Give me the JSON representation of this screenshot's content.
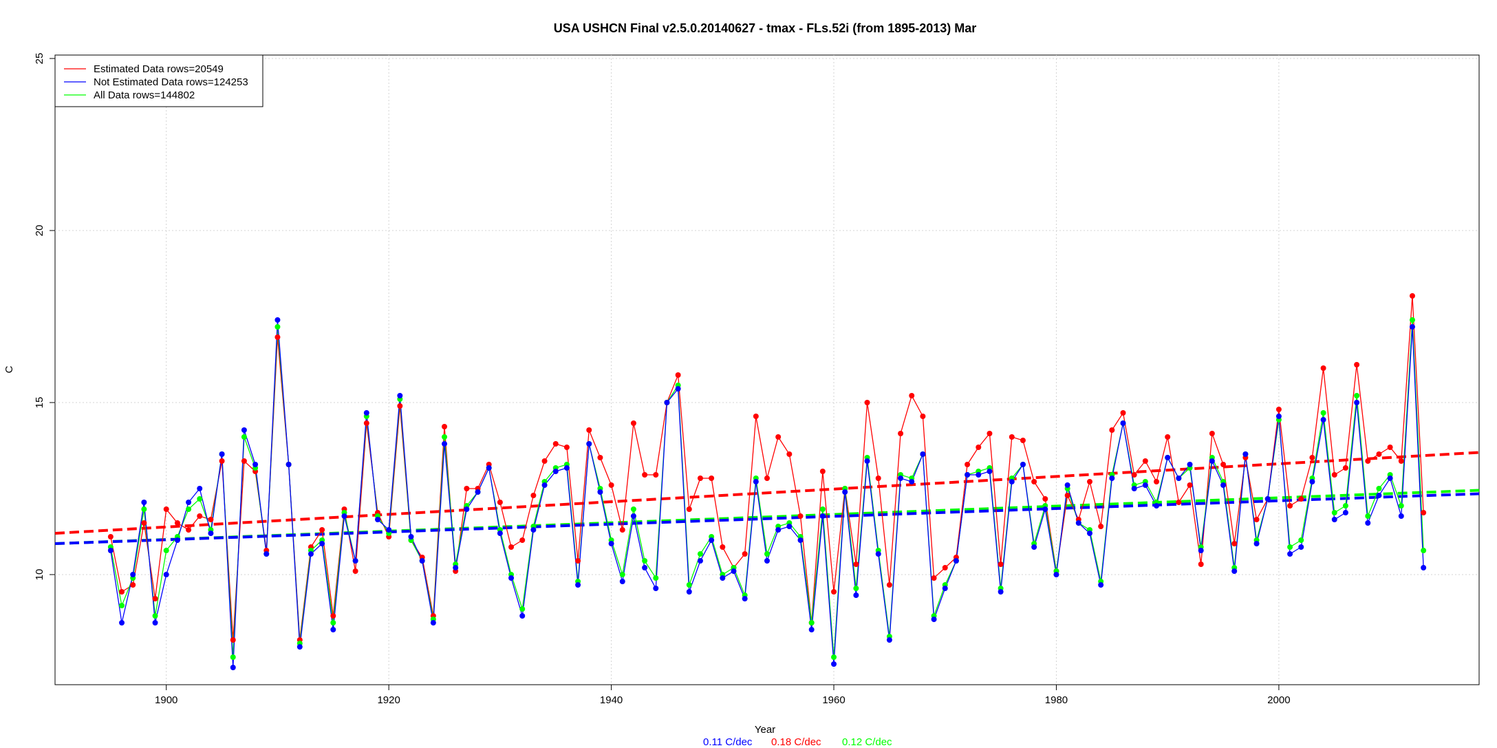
{
  "chart_data": {
    "type": "line",
    "title": "USA USHCN Final v2.5.0.20140627 - tmax - FLs.52i (from 1895-2013) Mar",
    "xlabel": "Year",
    "ylabel": "C",
    "xlim": [
      1890,
      2018
    ],
    "ylim": [
      6.8,
      25.1
    ],
    "xticks": [
      1900,
      1920,
      1940,
      1960,
      1980,
      2000
    ],
    "xtick_labels": [
      "1900",
      "1920",
      "1940",
      "1960",
      "1980",
      "2000"
    ],
    "yticks": [
      10,
      15,
      20,
      25
    ],
    "ytick_labels": [
      "10",
      "15",
      "20",
      "25"
    ],
    "grid": true,
    "legend_position": "top-left",
    "x": [
      1895,
      1896,
      1897,
      1898,
      1899,
      1900,
      1901,
      1902,
      1903,
      1904,
      1905,
      1906,
      1907,
      1908,
      1909,
      1910,
      1911,
      1912,
      1913,
      1914,
      1915,
      1916,
      1917,
      1918,
      1919,
      1920,
      1921,
      1922,
      1923,
      1924,
      1925,
      1926,
      1927,
      1928,
      1929,
      1930,
      1931,
      1932,
      1933,
      1934,
      1935,
      1936,
      1937,
      1938,
      1939,
      1940,
      1941,
      1942,
      1943,
      1944,
      1945,
      1946,
      1947,
      1948,
      1949,
      1950,
      1951,
      1952,
      1953,
      1954,
      1955,
      1956,
      1957,
      1958,
      1959,
      1960,
      1961,
      1962,
      1963,
      1964,
      1965,
      1966,
      1967,
      1968,
      1969,
      1970,
      1971,
      1972,
      1973,
      1974,
      1975,
      1976,
      1977,
      1978,
      1979,
      1980,
      1981,
      1982,
      1983,
      1984,
      1985,
      1986,
      1987,
      1988,
      1989,
      1990,
      1991,
      1992,
      1993,
      1994,
      1995,
      1996,
      1997,
      1998,
      1999,
      2000,
      2001,
      2002,
      2003,
      2004,
      2005,
      2006,
      2007,
      2008,
      2009,
      2010,
      2011,
      2012,
      2013
    ],
    "series": [
      {
        "name": "Estimated Data rows=20549",
        "color": "#ff0000",
        "values": [
          11.1,
          9.5,
          9.7,
          11.5,
          9.3,
          11.9,
          11.5,
          11.3,
          11.7,
          11.6,
          13.3,
          8.1,
          13.3,
          13.0,
          10.7,
          16.9,
          13.2,
          8.1,
          10.8,
          11.3,
          8.8,
          11.9,
          10.1,
          14.4,
          11.8,
          11.1,
          14.9,
          11.0,
          10.5,
          8.8,
          14.3,
          10.1,
          12.5,
          12.5,
          13.2,
          12.1,
          10.8,
          11.0,
          12.3,
          13.3,
          13.8,
          13.7,
          10.4,
          14.2,
          13.4,
          12.6,
          11.3,
          14.4,
          12.9,
          12.9,
          15.0,
          15.8,
          11.9,
          12.8,
          12.8,
          10.8,
          10.2,
          10.6,
          14.6,
          12.8,
          14.0,
          13.5,
          11.7,
          8.6,
          13.0,
          9.5,
          12.5,
          10.3,
          15.0,
          12.8,
          9.7,
          14.1,
          15.2,
          14.6,
          9.9,
          10.2,
          10.5,
          13.2,
          13.7,
          14.1,
          10.3,
          14.0,
          13.9,
          12.7,
          12.2,
          10.1,
          12.3,
          11.6,
          12.7,
          11.4,
          14.2,
          14.7,
          12.9,
          13.3,
          12.7,
          14.0,
          12.1,
          12.6,
          10.3,
          14.1,
          13.2,
          10.9,
          13.4,
          11.6,
          12.2,
          14.8,
          12.0,
          12.2,
          13.4,
          16.0,
          12.9,
          13.1,
          16.1,
          13.3,
          13.5,
          13.7,
          13.3,
          18.1,
          11.8
        ]
      },
      {
        "name": "Not Estimated Data rows=124253",
        "color": "#0000ff",
        "values": [
          10.7,
          8.6,
          10.0,
          12.1,
          8.6,
          10.0,
          11.0,
          12.1,
          12.5,
          11.2,
          13.5,
          7.3,
          14.2,
          13.2,
          10.6,
          17.4,
          13.2,
          7.9,
          10.6,
          10.9,
          8.4,
          11.7,
          10.4,
          14.7,
          11.6,
          11.3,
          15.2,
          11.1,
          10.4,
          8.6,
          13.8,
          10.2,
          11.9,
          12.4,
          13.1,
          11.2,
          9.9,
          8.8,
          11.3,
          12.6,
          13.0,
          13.1,
          9.7,
          13.8,
          12.4,
          10.9,
          9.8,
          11.7,
          10.2,
          9.6,
          15.0,
          15.4,
          9.5,
          10.4,
          11.0,
          9.9,
          10.1,
          9.3,
          12.7,
          10.4,
          11.3,
          11.4,
          11.0,
          8.4,
          11.7,
          7.4,
          12.4,
          9.4,
          13.3,
          10.6,
          8.1,
          12.8,
          12.7,
          13.5,
          8.7,
          9.6,
          10.4,
          12.9,
          12.9,
          13.0,
          9.5,
          12.7,
          13.2,
          10.8,
          11.9,
          10.0,
          12.6,
          11.5,
          11.2,
          9.7,
          12.8,
          14.4,
          12.5,
          12.6,
          12.0,
          13.4,
          12.8,
          13.2,
          10.7,
          13.3,
          12.6,
          10.1,
          13.5,
          10.9,
          12.2,
          14.6,
          10.6,
          10.8,
          12.7,
          14.5,
          11.6,
          11.8,
          15.0,
          11.5,
          12.3,
          12.8,
          11.7,
          17.2,
          10.2
        ]
      },
      {
        "name": "All Data rows=144802",
        "color": "#00ff00",
        "values": [
          10.8,
          9.1,
          9.9,
          11.9,
          8.8,
          10.7,
          11.1,
          11.9,
          12.2,
          11.3,
          13.5,
          7.6,
          14.0,
          13.1,
          10.6,
          17.2,
          13.2,
          8.0,
          10.7,
          11.0,
          8.6,
          11.8,
          10.4,
          14.6,
          11.7,
          11.2,
          15.1,
          11.0,
          10.4,
          8.7,
          14.0,
          10.3,
          12.0,
          12.4,
          13.1,
          11.3,
          10.0,
          9.0,
          11.4,
          12.7,
          13.1,
          13.2,
          9.8,
          13.8,
          12.5,
          11.0,
          10.0,
          11.9,
          10.4,
          9.9,
          15.0,
          15.5,
          9.7,
          10.6,
          11.1,
          10.0,
          10.2,
          9.4,
          12.8,
          10.6,
          11.4,
          11.5,
          11.1,
          8.6,
          11.9,
          7.6,
          12.5,
          9.6,
          13.4,
          10.7,
          8.2,
          12.9,
          12.8,
          13.5,
          8.8,
          9.7,
          10.4,
          12.9,
          13.0,
          13.1,
          9.6,
          12.8,
          13.2,
          10.9,
          12.0,
          10.1,
          12.5,
          11.5,
          11.3,
          9.8,
          12.9,
          14.4,
          12.6,
          12.7,
          12.1,
          13.4,
          12.8,
          13.1,
          10.8,
          13.4,
          12.7,
          10.2,
          13.5,
          11.0,
          12.2,
          14.5,
          10.8,
          11.0,
          12.8,
          14.7,
          11.8,
          12.0,
          15.2,
          11.7,
          12.5,
          12.9,
          12.0,
          17.4,
          10.7
        ]
      }
    ],
    "trends": [
      {
        "name": "Estimated trend",
        "color": "#ff0000",
        "start": [
          1890,
          11.2
        ],
        "end": [
          2018,
          13.55
        ]
      },
      {
        "name": "All trend",
        "color": "#00ff00",
        "start": [
          1890,
          10.9
        ],
        "end": [
          2018,
          12.45
        ]
      },
      {
        "name": "Not Estimated trend",
        "color": "#0000ff",
        "start": [
          1890,
          10.9
        ],
        "end": [
          2018,
          12.35
        ]
      }
    ],
    "trend_labels": [
      {
        "text": "0.11 C/dec",
        "color": "#0000ff"
      },
      {
        "text": "0.18 C/dec",
        "color": "#ff0000"
      },
      {
        "text": "0.12 C/dec",
        "color": "#00ff00"
      }
    ]
  }
}
